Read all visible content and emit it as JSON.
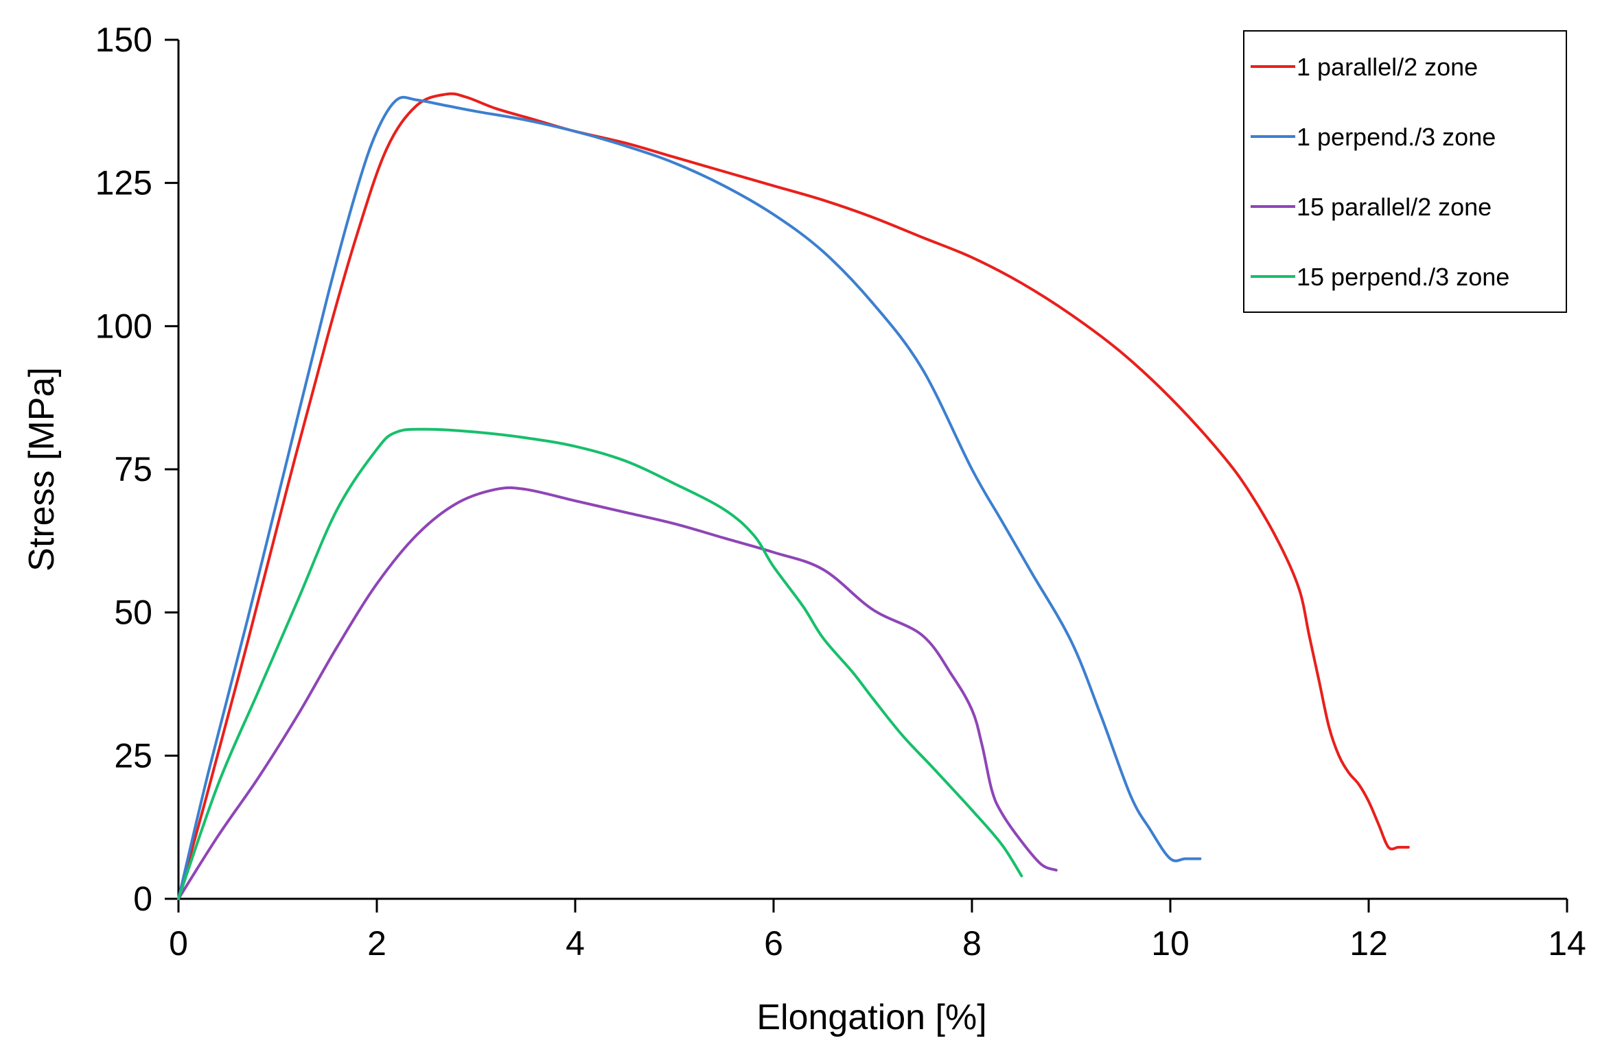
{
  "chart_data": {
    "type": "line",
    "title": "",
    "xlabel": "Elongation  [%]",
    "ylabel": "Stress  [MPa]",
    "xlim": [
      0,
      14
    ],
    "ylim": [
      0,
      150
    ],
    "xticks": [
      0,
      2,
      4,
      6,
      8,
      10,
      12,
      14
    ],
    "yticks": [
      0,
      25,
      50,
      75,
      100,
      125,
      150
    ],
    "xtick_labels": [
      "0",
      "2",
      "4",
      "6",
      "8",
      "10",
      "12",
      "14"
    ],
    "ytick_labels": [
      "0",
      "25",
      "50",
      "75",
      "100",
      "125",
      "150"
    ],
    "grid": false,
    "legend_position": "top-right",
    "series": [
      {
        "name": "1 parallel/2 zone",
        "color": "#e8201c",
        "x": [
          0,
          0.3,
          0.7,
          1.1,
          1.5,
          1.8,
          2.1,
          2.4,
          2.7,
          2.9,
          3.2,
          3.6,
          4.0,
          4.5,
          5.0,
          5.5,
          6.0,
          6.5,
          7.0,
          7.5,
          8.0,
          8.5,
          9.0,
          9.5,
          10.0,
          10.5,
          10.8,
          11.1,
          11.3,
          11.4,
          11.5,
          11.6,
          11.7,
          11.8,
          11.9,
          12.0,
          12.1,
          12.2,
          12.3,
          12.4
        ],
        "y": [
          0,
          19,
          45,
          72,
          98,
          116,
          131,
          138.5,
          140.5,
          140,
          138,
          136,
          134,
          132,
          129.5,
          127,
          124.5,
          122,
          119,
          115.5,
          112,
          107.5,
          102,
          95.5,
          87.5,
          78,
          71,
          62,
          54,
          46,
          38,
          30,
          25,
          22,
          20,
          17,
          13,
          9,
          9,
          9
        ]
      },
      {
        "name": "1 perpend./3 zone",
        "color": "#3c7fd0",
        "x": [
          0,
          0.3,
          0.7,
          1.1,
          1.5,
          1.8,
          2.0,
          2.2,
          2.4,
          2.7,
          3.0,
          3.5,
          4.0,
          4.5,
          5.0,
          5.5,
          6.0,
          6.5,
          7.0,
          7.5,
          8.0,
          8.3,
          8.6,
          9.0,
          9.3,
          9.6,
          9.8,
          10.0,
          10.15,
          10.3
        ],
        "y": [
          0,
          22,
          49,
          77,
          105,
          124,
          134,
          139.5,
          139.5,
          138.5,
          137.5,
          136,
          134,
          131.5,
          128.5,
          124.5,
          119.5,
          113,
          104,
          92.5,
          75,
          66,
          57,
          45,
          32,
          18,
          12,
          7,
          7,
          7
        ]
      },
      {
        "name": "15 parallel/2 zone",
        "color": "#8e45b7",
        "x": [
          0,
          0.4,
          0.8,
          1.2,
          1.6,
          2.0,
          2.4,
          2.8,
          3.2,
          3.5,
          4.0,
          4.5,
          5.0,
          5.5,
          6.0,
          6.5,
          7.0,
          7.5,
          7.8,
          8.0,
          8.1,
          8.2,
          8.3,
          8.5,
          8.7,
          8.85
        ],
        "y": [
          0,
          11,
          21,
          32,
          44,
          55,
          63.5,
          69,
          71.5,
          71.5,
          69.5,
          67.5,
          65.5,
          63,
          60.5,
          57.5,
          50.5,
          46,
          39,
          33,
          27,
          19,
          15,
          10,
          6,
          5
        ]
      },
      {
        "name": "15 perpend./3 zone",
        "color": "#17bf6b",
        "x": [
          0,
          0.4,
          0.8,
          1.2,
          1.6,
          2.0,
          2.2,
          2.5,
          3.0,
          3.5,
          4.0,
          4.5,
          5.0,
          5.5,
          5.8,
          6.0,
          6.3,
          6.5,
          6.8,
          7.0,
          7.3,
          7.6,
          8.0,
          8.3,
          8.5
        ],
        "y": [
          0,
          20,
          36,
          52,
          68,
          78.5,
          81.5,
          82,
          81.5,
          80.5,
          79,
          76.5,
          72.5,
          68,
          63.5,
          58,
          51,
          45.5,
          39.5,
          35,
          28.5,
          23,
          15.5,
          9.5,
          4
        ]
      }
    ]
  }
}
